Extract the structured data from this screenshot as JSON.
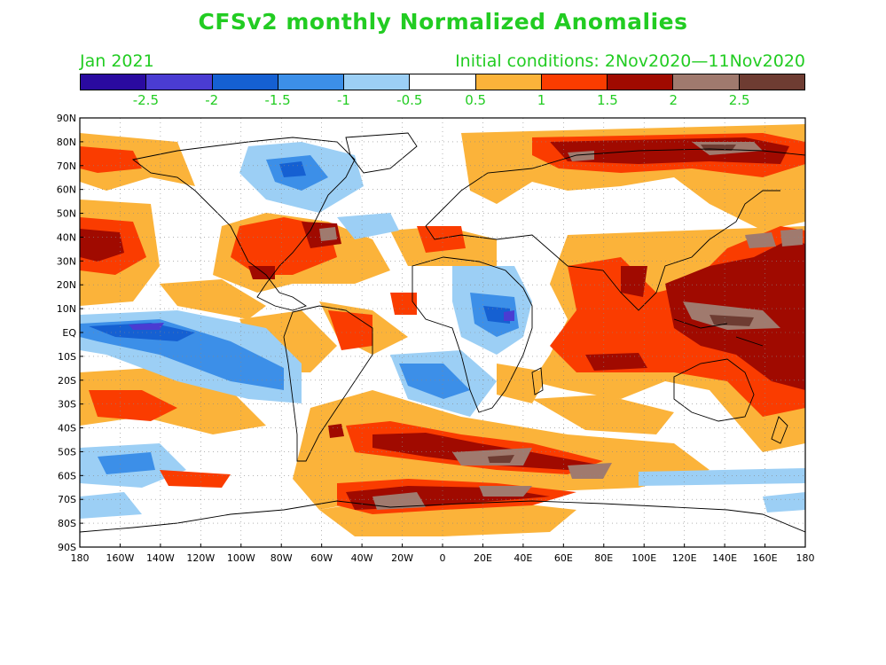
{
  "title": "CFSv2 monthly Normalized Anomalies",
  "valid_month": "Jan 2021",
  "initial_conditions": "Initial conditions: 2Nov2020—11Nov2020",
  "colorbar": {
    "colors": [
      "#2a0aa0",
      "#4a3cd2",
      "#1560d2",
      "#3c8fe8",
      "#9ccff5",
      "#ffffff",
      "#fbb33a",
      "#fa3c00",
      "#a00a00",
      "#a07a6e",
      "#6e3c32"
    ],
    "labels": [
      "-2.5",
      "-2",
      "-1.5",
      "-1",
      "-0.5",
      "0.5",
      "1",
      "1.5",
      "2",
      "2.5"
    ]
  },
  "axes": {
    "y_ticks": [
      "90N",
      "80N",
      "70N",
      "60N",
      "50N",
      "40N",
      "30N",
      "20N",
      "10N",
      "EQ",
      "10S",
      "20S",
      "30S",
      "40S",
      "50S",
      "60S",
      "70S",
      "80S",
      "90S"
    ],
    "x_ticks": [
      "180",
      "160W",
      "140W",
      "120W",
      "100W",
      "80W",
      "60W",
      "40W",
      "20W",
      "0",
      "20E",
      "40E",
      "60E",
      "80E",
      "100E",
      "120E",
      "140E",
      "160E",
      "180"
    ]
  }
}
